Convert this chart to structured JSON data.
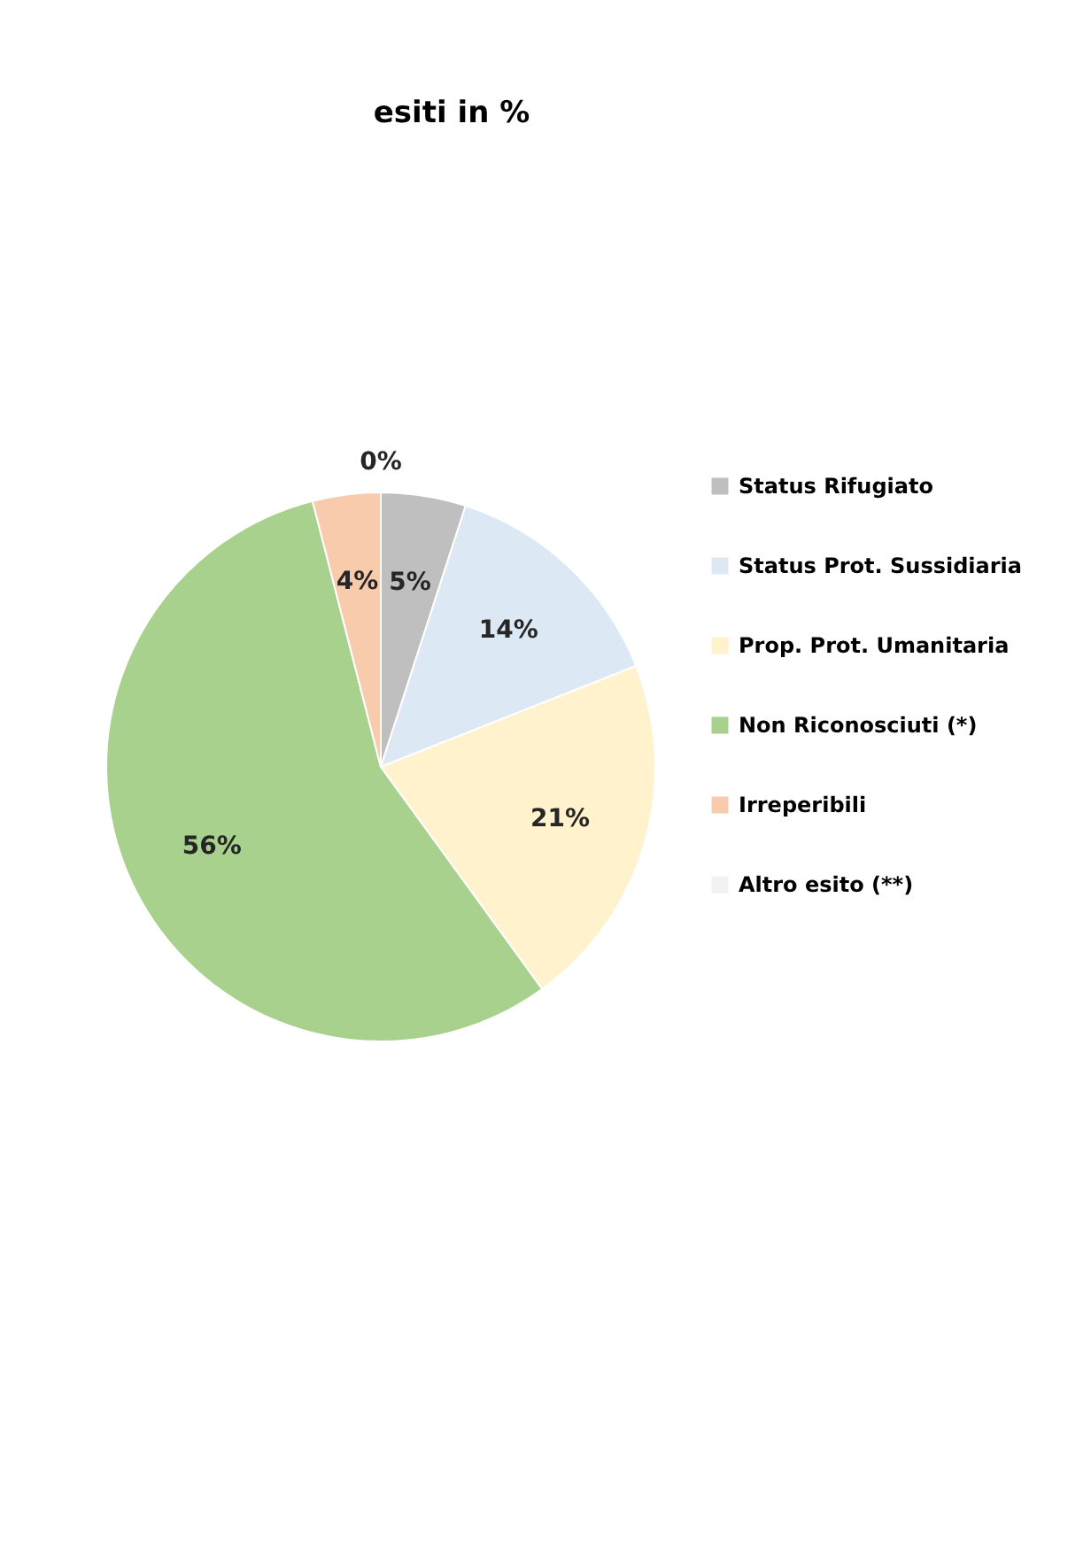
{
  "chart_data": {
    "type": "pie",
    "title": "esiti in %",
    "categories": [
      "Status Rifugiato",
      "Status Prot. Sussidiaria",
      "Prop. Prot. Umanitaria",
      "Non Riconosciuti (*)",
      "Irreperibili",
      "Altro esito (**)"
    ],
    "values": [
      5,
      14,
      21,
      56,
      4,
      0
    ],
    "colors": [
      "#bfbfbf",
      "#dde8f5",
      "#fff2cc",
      "#a9d18e",
      "#f8cbad",
      "#f2f2f2"
    ],
    "value_labels": [
      "5%",
      "14%",
      "21%",
      "56%",
      "4%",
      "0%"
    ],
    "legend": "right"
  }
}
